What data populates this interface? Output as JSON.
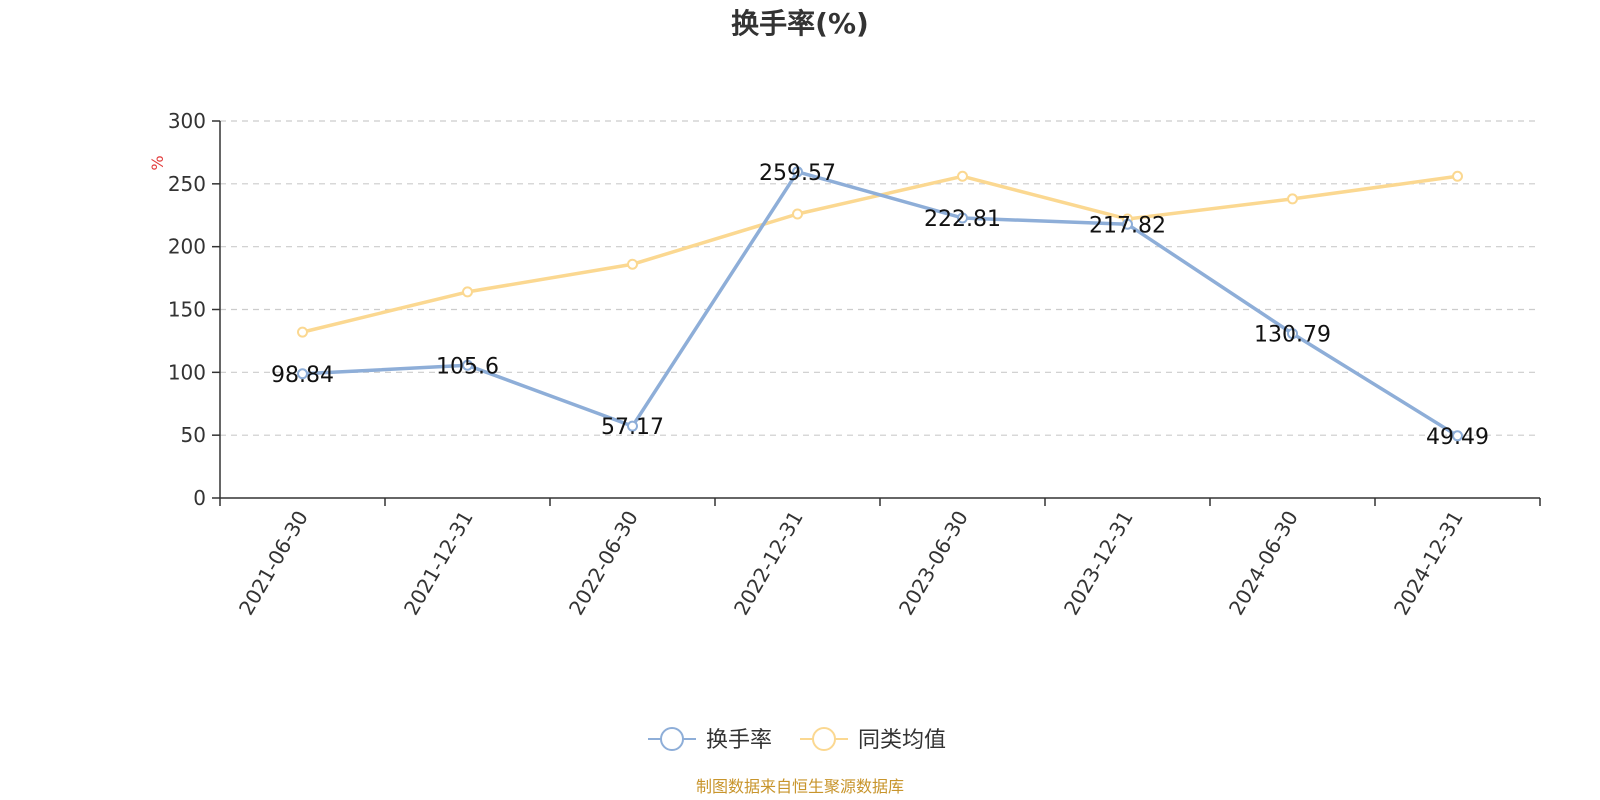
{
  "chart_data": {
    "type": "line",
    "title": "换手率(%)",
    "ylabel": "%",
    "categories": [
      "2021-06-30",
      "2021-12-31",
      "2022-06-30",
      "2022-12-31",
      "2023-06-30",
      "2023-12-31",
      "2024-06-30",
      "2024-12-31"
    ],
    "ylim": [
      0,
      300
    ],
    "yticks": [
      0,
      50,
      100,
      150,
      200,
      250,
      300
    ],
    "grid": true,
    "legend_position": "bottom-center",
    "series": [
      {
        "name": "换手率",
        "color": "#8eaed8",
        "values": [
          98.84,
          105.6,
          57.17,
          259.57,
          222.81,
          217.82,
          130.79,
          49.49
        ],
        "show_labels": true
      },
      {
        "name": "同类均值",
        "color": "#fbd891",
        "values": [
          132,
          164,
          186,
          226,
          256,
          222,
          238,
          256
        ],
        "show_labels": false
      }
    ]
  },
  "footer": {
    "source": "制图数据来自恒生聚源数据库"
  }
}
